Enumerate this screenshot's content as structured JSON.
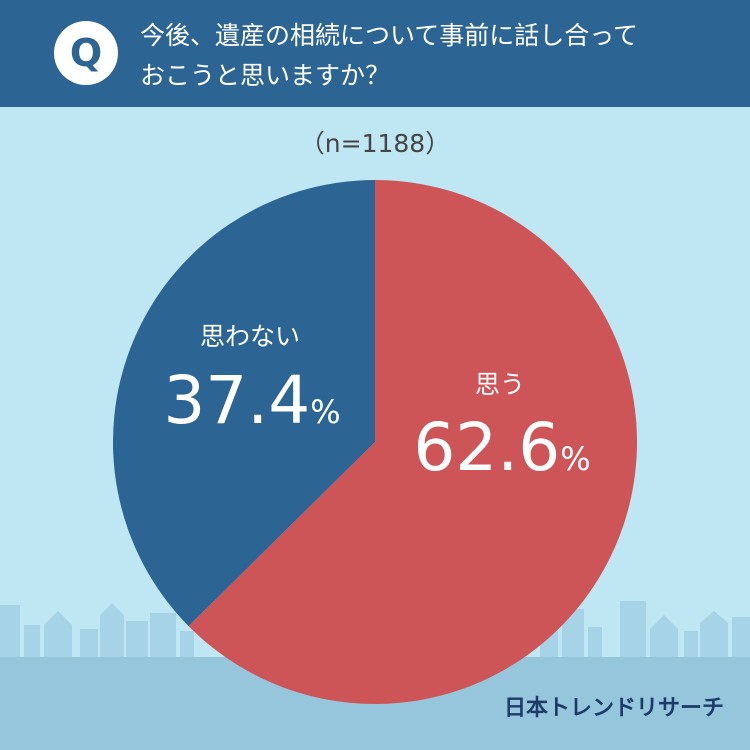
{
  "question": {
    "icon_letter": "Q",
    "line1": "今後、遺産の相続について事前に話し合って",
    "line2": "おこうと思いますか？"
  },
  "sample_size": "（n=1188）",
  "brand": "日本トレンドリサーチ",
  "colors": {
    "header_bg": "#2c6594",
    "background": "#bfe6f3",
    "ground": "#95c6dc",
    "red_slice": "#cd5558",
    "blue_slice": "#2c6594"
  },
  "chart_data": {
    "type": "pie",
    "n": 1188,
    "slices": [
      {
        "label": "思う",
        "value": 62.6,
        "display": "62.6",
        "unit": "%",
        "color": "#cd5558"
      },
      {
        "label": "思わない",
        "value": 37.4,
        "display": "37.4",
        "unit": "%",
        "color": "#2c6594"
      }
    ]
  }
}
